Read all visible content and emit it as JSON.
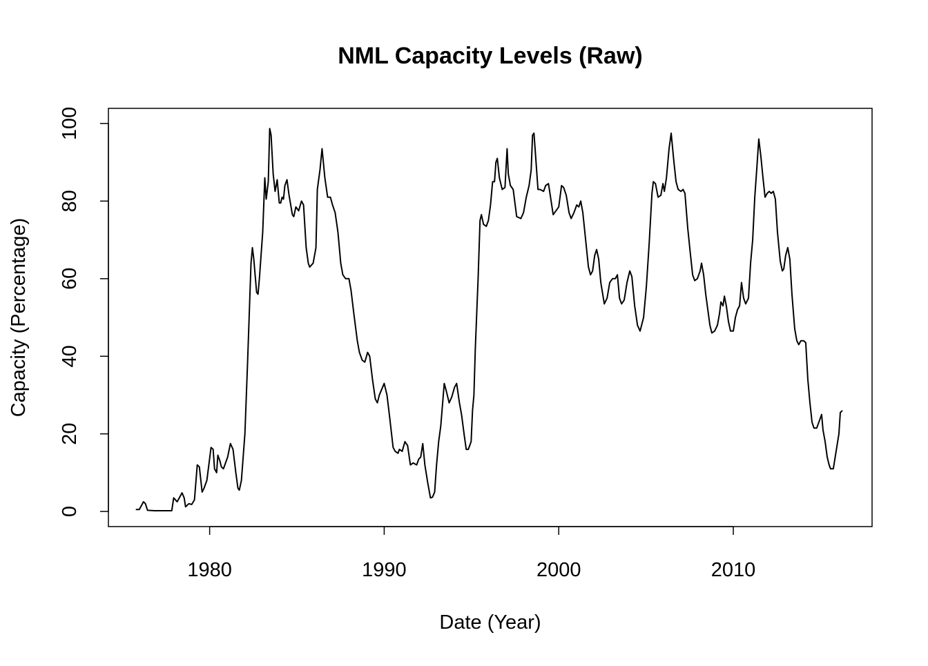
{
  "chart_data": {
    "type": "line",
    "title": "NML Capacity Levels (Raw)",
    "x_label": "Date (Year)",
    "y_label": "Capacity (Percentage)",
    "color": "#000000",
    "grid": false,
    "xlim": [
      1974.2,
      2017.95
    ],
    "ylim": [
      -3.9,
      103.9
    ],
    "xticks": [
      1980,
      1990,
      2000,
      2010
    ],
    "yticks": [
      0,
      20,
      40,
      60,
      80,
      100
    ],
    "x": [
      1975.77,
      1975.97,
      1976.21,
      1976.32,
      1976.44,
      1976.84,
      1977.43,
      1977.83,
      1977.94,
      1978.14,
      1978.42,
      1978.54,
      1978.62,
      1978.81,
      1978.97,
      1979.13,
      1979.29,
      1979.41,
      1979.57,
      1979.68,
      1979.84,
      1980.08,
      1980.2,
      1980.28,
      1980.4,
      1980.47,
      1980.59,
      1980.67,
      1980.79,
      1981.03,
      1981.19,
      1981.34,
      1981.5,
      1981.62,
      1981.7,
      1981.82,
      1982.02,
      1982.17,
      1982.37,
      1982.45,
      1982.53,
      1982.69,
      1982.77,
      1982.85,
      1983.04,
      1983.16,
      1983.24,
      1983.36,
      1983.44,
      1983.52,
      1983.64,
      1983.75,
      1983.87,
      1983.99,
      1984.07,
      1984.15,
      1984.23,
      1984.31,
      1984.43,
      1984.55,
      1984.74,
      1984.82,
      1984.94,
      1985.1,
      1985.26,
      1985.38,
      1985.53,
      1985.65,
      1985.73,
      1985.93,
      1986.09,
      1986.17,
      1986.32,
      1986.44,
      1986.6,
      1986.76,
      1986.92,
      1987.04,
      1987.19,
      1987.35,
      1987.51,
      1987.63,
      1987.79,
      1987.98,
      1988.1,
      1988.26,
      1988.46,
      1988.58,
      1988.74,
      1988.89,
      1989.05,
      1989.17,
      1989.33,
      1989.49,
      1989.61,
      1989.72,
      1990.0,
      1990.16,
      1990.32,
      1990.51,
      1990.63,
      1990.79,
      1990.87,
      1991.03,
      1991.19,
      1991.34,
      1991.5,
      1991.66,
      1991.86,
      1991.98,
      1992.09,
      1992.21,
      1992.33,
      1992.49,
      1992.65,
      1992.77,
      1992.89,
      1993.0,
      1993.12,
      1993.24,
      1993.44,
      1993.56,
      1993.72,
      1993.87,
      1994.03,
      1994.15,
      1994.31,
      1994.43,
      1994.59,
      1994.7,
      1994.82,
      1994.98,
      1995.06,
      1995.14,
      1995.22,
      1995.38,
      1995.49,
      1995.57,
      1995.69,
      1995.85,
      1995.97,
      1996.09,
      1996.21,
      1996.32,
      1996.4,
      1996.48,
      1996.6,
      1996.76,
      1996.92,
      1997.04,
      1997.11,
      1997.23,
      1997.39,
      1997.59,
      1997.83,
      1997.98,
      1998.14,
      1998.3,
      1998.42,
      1998.5,
      1998.58,
      1998.7,
      1998.81,
      1998.93,
      1999.13,
      1999.25,
      1999.41,
      1999.53,
      1999.68,
      1999.84,
      2000.0,
      2000.16,
      2000.28,
      2000.43,
      2000.59,
      2000.71,
      2000.87,
      2001.03,
      2001.15,
      2001.26,
      2001.38,
      2001.54,
      2001.7,
      2001.82,
      2001.94,
      2002.06,
      2002.17,
      2002.29,
      2002.41,
      2002.61,
      2002.77,
      2002.92,
      2003.08,
      2003.24,
      2003.36,
      2003.48,
      2003.6,
      2003.75,
      2003.91,
      2004.07,
      2004.19,
      2004.35,
      2004.51,
      2004.66,
      2004.86,
      2005.02,
      2005.18,
      2005.34,
      2005.42,
      2005.54,
      2005.69,
      2005.85,
      2005.97,
      2006.05,
      2006.17,
      2006.32,
      2006.44,
      2006.6,
      2006.72,
      2006.84,
      2007.0,
      2007.12,
      2007.23,
      2007.39,
      2007.55,
      2007.67,
      2007.79,
      2007.94,
      2008.1,
      2008.18,
      2008.3,
      2008.42,
      2008.54,
      2008.66,
      2008.77,
      2008.93,
      2009.09,
      2009.21,
      2009.29,
      2009.41,
      2009.49,
      2009.6,
      2009.72,
      2009.84,
      2010.0,
      2010.12,
      2010.24,
      2010.36,
      2010.47,
      2010.59,
      2010.71,
      2010.87,
      2010.99,
      2011.11,
      2011.23,
      2011.34,
      2011.46,
      2011.58,
      2011.7,
      2011.82,
      2011.94,
      2012.06,
      2012.17,
      2012.29,
      2012.41,
      2012.53,
      2012.69,
      2012.81,
      2012.89,
      2013.0,
      2013.12,
      2013.24,
      2013.36,
      2013.52,
      2013.64,
      2013.75,
      2013.87,
      2014.03,
      2014.15,
      2014.27,
      2014.39,
      2014.51,
      2014.62,
      2014.78,
      2014.9,
      2015.06,
      2015.14,
      2015.26,
      2015.38,
      2015.49,
      2015.57,
      2015.73,
      2015.89,
      2016.05,
      2016.13,
      2016.25
    ],
    "values": [
      0.5,
      0.5,
      2.5,
      2,
      0.3,
      0.2,
      0.2,
      0.2,
      3.5,
      2.5,
      4.8,
      3.5,
      1.2,
      2,
      1.8,
      3,
      12,
      11.5,
      5,
      6,
      8,
      16.5,
      16,
      11,
      10,
      14.5,
      13,
      11.5,
      11,
      14,
      17.5,
      16,
      10,
      6,
      5.5,
      8,
      20,
      38,
      64,
      68,
      65,
      56.5,
      56,
      60,
      72,
      86,
      80.5,
      85,
      98.7,
      97,
      87,
      82.5,
      85.5,
      79.5,
      79.5,
      81,
      80.5,
      84,
      85.5,
      81.5,
      76.5,
      76,
      78.5,
      77.5,
      80,
      79,
      68,
      64,
      63,
      64,
      68,
      83,
      88,
      93.5,
      86,
      81,
      81,
      79,
      77,
      72,
      64,
      61,
      60,
      60,
      57,
      51,
      44,
      41,
      39,
      38.5,
      41,
      40,
      34,
      29,
      28,
      30,
      33,
      30,
      24,
      16.5,
      15.5,
      15,
      16,
      15.5,
      18,
      17,
      12,
      12.5,
      12,
      13.5,
      14,
      17.5,
      12,
      7.5,
      3.5,
      3.7,
      5,
      12,
      18,
      22,
      33,
      31,
      28,
      29.5,
      32,
      33,
      28,
      25,
      19.5,
      16,
      16,
      18,
      26,
      30,
      42,
      60,
      75,
      76.5,
      74,
      73.5,
      75,
      79,
      85,
      85,
      90,
      91,
      86,
      83,
      83.5,
      93.5,
      87,
      84,
      83,
      76,
      75.5,
      77,
      81,
      84,
      88,
      97,
      97.5,
      90,
      83,
      83,
      82.5,
      84,
      84.5,
      81,
      76.5,
      77.5,
      78.5,
      84,
      83.5,
      81.5,
      77,
      75.5,
      77,
      79,
      78.5,
      80,
      77,
      70,
      63,
      61,
      62,
      66,
      67.5,
      65,
      59,
      53.5,
      55,
      59,
      60,
      60,
      61,
      55,
      53.5,
      54.5,
      59,
      62,
      60.5,
      53,
      48,
      46.5,
      50,
      58,
      69,
      82,
      85,
      84.5,
      81,
      81.5,
      84.5,
      82.5,
      86,
      93.5,
      97.5,
      90,
      85,
      83,
      82.5,
      83,
      82,
      73,
      66,
      61,
      59.5,
      60,
      62,
      64,
      61,
      56,
      52,
      48,
      46,
      46.5,
      48,
      51,
      54,
      53,
      55.5,
      53,
      49,
      46.5,
      46.5,
      50,
      52,
      53,
      59,
      55,
      53.5,
      55,
      64,
      70,
      81,
      88,
      96,
      91.5,
      86,
      81,
      82,
      82.5,
      82,
      82.5,
      80.5,
      72,
      64.5,
      62,
      62.5,
      66,
      68,
      65,
      56,
      47,
      44,
      43,
      44,
      44,
      43.5,
      34,
      28,
      23,
      21.5,
      21.5,
      23,
      25,
      21,
      18,
      14,
      12,
      11,
      11,
      15.5,
      20,
      25.5,
      26
    ]
  }
}
